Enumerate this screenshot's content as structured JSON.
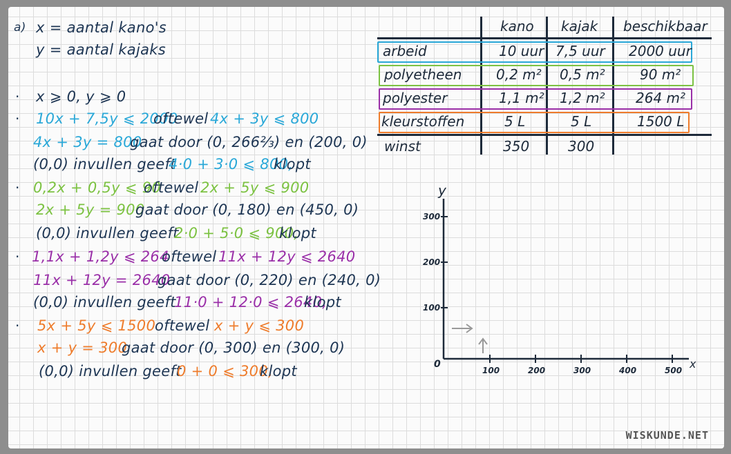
{
  "left": {
    "defs": {
      "marker": "a)",
      "x_def": "x = aantal kano's",
      "y_def": "y = aantal kajaks"
    },
    "nonneg": "x ⩾ 0,  y ⩾ 0",
    "arbeid": {
      "ineq": "10x + 7,5y ⩽ 2000",
      "oftewel": "oftewel",
      "simplified": "4x + 3y ⩽ 800",
      "line_eq": "4x + 3y = 800",
      "gaat_door": "gaat door  (0, 266⅔)  en  (200, 0)",
      "check_prefix": "(0,0) invullen geeft",
      "check_expr": "4·0 + 3·0 ⩽ 800,",
      "check_suffix": "klopt"
    },
    "polyetheen": {
      "ineq": "0,2x + 0,5y ⩽ 90",
      "oftewel": "oftewel",
      "simplified": "2x + 5y ⩽ 900",
      "line_eq": "2x + 5y = 900",
      "gaat_door": "gaat door  (0, 180)  en  (450, 0)",
      "check_prefix": "(0,0) invullen geeft",
      "check_expr": "2·0 + 5·0 ⩽ 900,",
      "check_suffix": "klopt"
    },
    "polyester": {
      "ineq": "1,1x + 1,2y ⩽ 264",
      "oftewel": "oftewel",
      "simplified": "11x + 12y ⩽ 2640",
      "line_eq": "11x + 12y = 2640",
      "gaat_door": "gaat door  (0, 220)  en  (240, 0)",
      "check_prefix": "(0,0) invullen geeft",
      "check_expr": "11·0 + 12·0 ⩽ 2640,",
      "check_suffix": "klopt"
    },
    "kleurstoffen": {
      "ineq": "5x + 5y ⩽ 1500",
      "oftewel": "oftewel",
      "simplified": "x + y ⩽ 300",
      "line_eq": "x + y = 300",
      "gaat_door": "gaat door  (0, 300)  en  (300, 0)",
      "check_prefix": "(0,0) invullen geeft",
      "check_expr": "0 + 0 ⩽ 300,",
      "check_suffix": "klopt"
    }
  },
  "table": {
    "headers": [
      "kano",
      "kajak",
      "beschikbaar"
    ],
    "rows": [
      {
        "label": "arbeid",
        "kano": "10 uur",
        "kajak": "7,5 uur",
        "beschikbaar": "2000 uur",
        "color": "#2aa8d8"
      },
      {
        "label": "polyetheen",
        "kano": "0,2 m²",
        "kajak": "0,5 m²",
        "beschikbaar": "90 m²",
        "color": "#7cc242"
      },
      {
        "label": "polyester",
        "kano": "1,1 m²",
        "kajak": "1,2 m²",
        "beschikbaar": "264 m²",
        "color": "#9a2fa8"
      },
      {
        "label": "kleurstoffen",
        "kano": "5 L",
        "kajak": "5 L",
        "beschikbaar": "1500 L",
        "color": "#ee7c2c"
      },
      {
        "label": "winst",
        "kano": "350",
        "kajak": "300",
        "beschikbaar": "",
        "color": ""
      }
    ]
  },
  "graph": {
    "x_label": "x",
    "y_label": "y",
    "origin": "0",
    "x_ticks": [
      "100",
      "200",
      "300",
      "400",
      "500"
    ],
    "y_ticks": [
      "100",
      "200",
      "300"
    ]
  },
  "watermark": "WISKUNDE.NET",
  "colors": {
    "dark": "#1d3553",
    "blue": "#2aa8d8",
    "green": "#7cc242",
    "purple": "#9a2fa8",
    "orange": "#ee7c2c"
  }
}
